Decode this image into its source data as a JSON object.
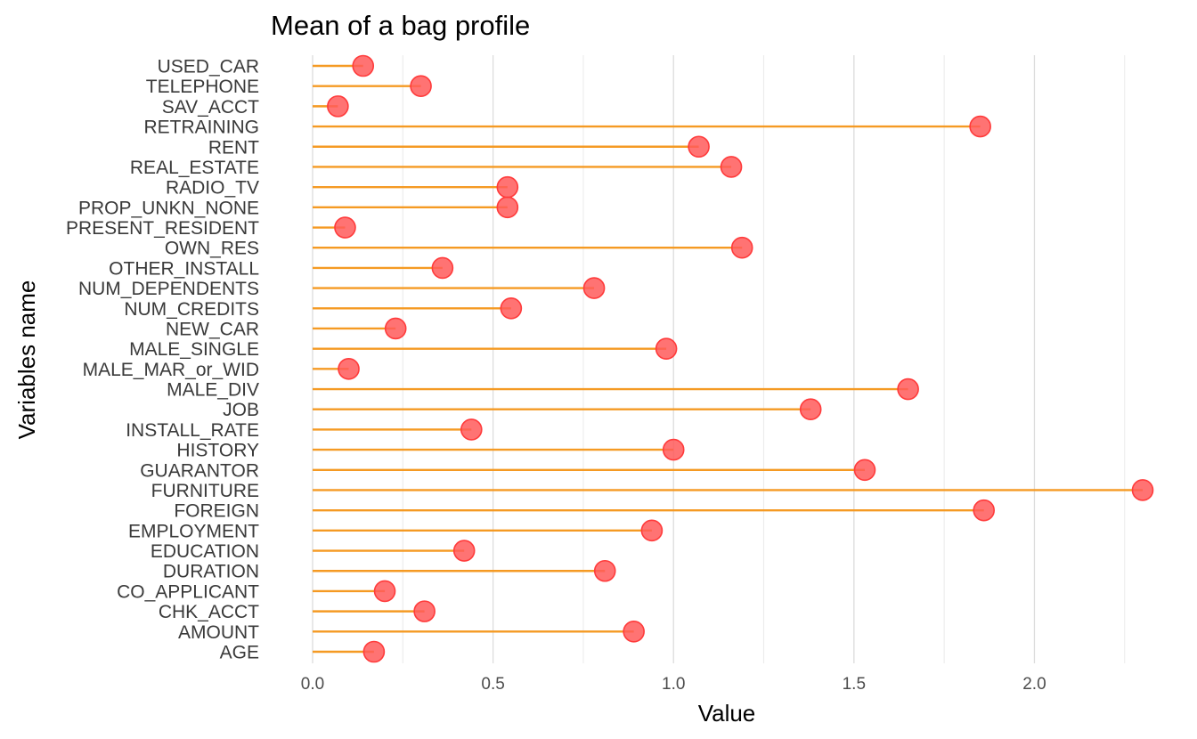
{
  "chart_data": {
    "type": "lollipop",
    "title": "Mean of a bag profile",
    "xlabel": "Value",
    "ylabel": "Variables name",
    "xlim": [
      0,
      2.3
    ],
    "x_ticks": [
      0.0,
      0.5,
      1.0,
      1.5,
      2.0
    ],
    "x_tick_labels": [
      "0.0",
      "0.5",
      "1.0",
      "1.5",
      "2.0"
    ],
    "grid": true,
    "legend": "none",
    "colors": {
      "stem": "#f59a23",
      "point": "#ff5a5a"
    },
    "categories": [
      "AGE",
      "AMOUNT",
      "CHK_ACCT",
      "CO_APPLICANT",
      "DURATION",
      "EDUCATION",
      "EMPLOYMENT",
      "FOREIGN",
      "FURNITURE",
      "GUARANTOR",
      "HISTORY",
      "INSTALL_RATE",
      "JOB",
      "MALE_DIV",
      "MALE_MAR_or_WID",
      "MALE_SINGLE",
      "NEW_CAR",
      "NUM_CREDITS",
      "NUM_DEPENDENTS",
      "OTHER_INSTALL",
      "OWN_RES",
      "PRESENT_RESIDENT",
      "PROP_UNKN_NONE",
      "RADIO_TV",
      "REAL_ESTATE",
      "RENT",
      "RETRAINING",
      "SAV_ACCT",
      "TELEPHONE",
      "USED_CAR"
    ],
    "values": [
      0.17,
      0.89,
      0.31,
      0.2,
      0.81,
      0.42,
      0.94,
      1.86,
      2.3,
      1.53,
      1.0,
      0.44,
      1.38,
      1.65,
      0.1,
      0.98,
      0.23,
      0.55,
      0.78,
      0.36,
      1.19,
      0.09,
      0.54,
      0.54,
      1.16,
      1.07,
      1.85,
      0.07,
      0.3,
      0.14
    ]
  }
}
